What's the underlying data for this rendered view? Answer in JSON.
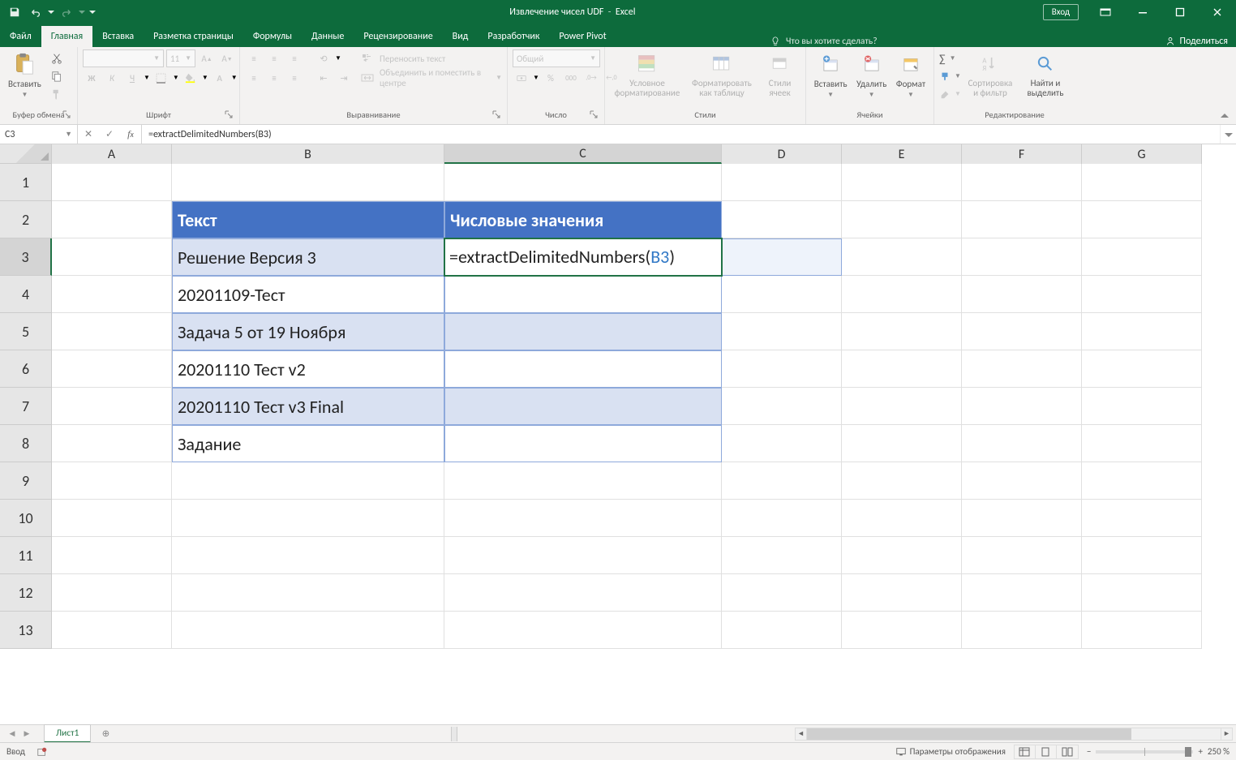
{
  "app": {
    "doc_title": "Извлечение чисел UDF",
    "app_name": "Excel",
    "login_label": "Вход"
  },
  "tabs": {
    "file": "Файл",
    "home": "Главная",
    "insert": "Вставка",
    "pagelayout": "Разметка страницы",
    "formulas": "Формулы",
    "data": "Данные",
    "review": "Рецензирование",
    "view": "Вид",
    "developer": "Разработчик",
    "powerpivot": "Power Pivot",
    "tell_me": "Что вы хотите сделать?",
    "share": "Поделиться"
  },
  "ribbon_groups": {
    "clipboard": {
      "label": "Буфер обмена",
      "paste": "Вставить"
    },
    "font": {
      "label": "Шрифт",
      "size": "11"
    },
    "alignment": {
      "label": "Выравнивание",
      "wrap": "Переносить текст",
      "merge": "Объединить и поместить в центре"
    },
    "number": {
      "label": "Число",
      "general": "Общий"
    },
    "styles": {
      "label": "Стили",
      "cond": "Условное форматирование",
      "table": "Форматировать как таблицу",
      "cell": "Стили ячеек"
    },
    "cells": {
      "label": "Ячейки",
      "insert": "Вставить",
      "delete": "Удалить",
      "format": "Формат"
    },
    "editing": {
      "label": "Редактирование",
      "sort": "Сортировка и фильтр",
      "find": "Найти и выделить"
    }
  },
  "namebox": "C3",
  "formula_bar": "=extractDelimitedNumbers(B3)",
  "grid": {
    "col_widths": {
      "rowhdr": 64,
      "A": 148,
      "B": 336,
      "C": 342,
      "D": 148,
      "E": 148,
      "F": 148,
      "G": 148
    },
    "col_letters": [
      "A",
      "B",
      "C",
      "D",
      "E",
      "F",
      "G"
    ],
    "row_heights": {
      "default": 46
    },
    "visible_rows": 13,
    "active_cell": "C3",
    "selected_col": "C",
    "selected_row": 3,
    "table": {
      "header_bg": "#4472c4",
      "header_fg": "#ffffff",
      "band_odd_bg": "#d9e1f2",
      "band_even_bg": "#ffffff",
      "border_color": "#8ea9db",
      "range": "B2:C8",
      "headers": {
        "B2": "Текст",
        "C2": "Числовые значения"
      },
      "rows": [
        {
          "B": "Решение Версия 3"
        },
        {
          "B": "20201109-Тест"
        },
        {
          "B": "Задача 5 от 19 Ноября"
        },
        {
          "B": "20201110 Тест v2"
        },
        {
          "B": "20201110 Тест v3 Final"
        },
        {
          "B": "Задание"
        }
      ]
    },
    "editing_cell": {
      "ref": "C3",
      "display_prefix": "=extractDelimitedNumbers(",
      "display_ref": "B3",
      "display_suffix": ")",
      "overflow_into": "D3"
    }
  },
  "sheets": {
    "active": "Лист1"
  },
  "statusbar": {
    "mode": "Ввод",
    "display_settings": "Параметры отображения",
    "zoom": "250 %"
  },
  "colors": {
    "excel_green": "#0d6b3c",
    "selection_green": "#217346",
    "ribbon_bg": "#f3f2f1",
    "grid_border": "#e0e0e0",
    "header_bg": "#e6e6e6",
    "ref_blue": "#3178c6",
    "table_header": "#4472c4",
    "table_band": "#d9e1f2"
  }
}
